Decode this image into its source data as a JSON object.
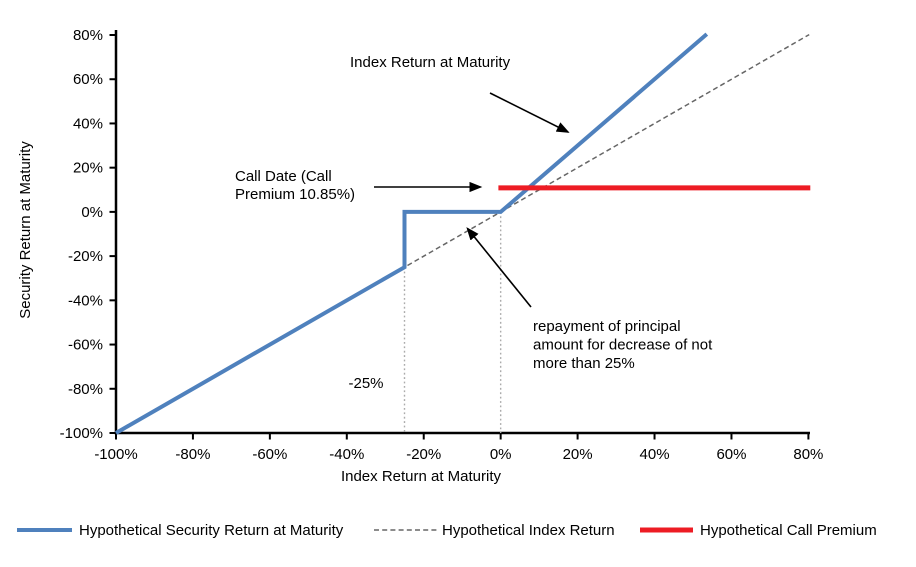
{
  "chart_data": {
    "type": "line",
    "title": "",
    "xlabel": "Index Return at Maturity",
    "ylabel": "Security Return at Maturity",
    "xlim": [
      -100,
      80
    ],
    "ylim": [
      -100,
      80
    ],
    "grid": false,
    "legend_position": "bottom",
    "x_tick_values": [
      -100,
      -80,
      -60,
      -40,
      -20,
      0,
      20,
      40,
      60,
      80
    ],
    "x_tick_labels": [
      "-100%",
      "-80%",
      "-60%",
      "-40%",
      "-20%",
      "0%",
      "20%",
      "40%",
      "60%",
      "80%"
    ],
    "y_tick_values": [
      80,
      60,
      40,
      20,
      0,
      -20,
      -40,
      -60,
      -80,
      -100
    ],
    "y_tick_labels": [
      "80%",
      "60%",
      "40%",
      "20%",
      "0%",
      "-20%",
      "-40%",
      "-60%",
      "-80%",
      "-100%"
    ],
    "series": [
      {
        "name": "Hypothetical Security Return at Maturity",
        "color": "#4F81BD",
        "style": "solid",
        "stroke_width": 4,
        "points": [
          [
            -100,
            -100
          ],
          [
            -25,
            -25
          ],
          [
            -25,
            0
          ],
          [
            0,
            0
          ],
          [
            53.6,
            80.4
          ]
        ]
      },
      {
        "name": "Hypothetical Index Return",
        "color": "#666666",
        "style": "dashed",
        "stroke_width": 1.5,
        "points": [
          [
            -100,
            -100
          ],
          [
            80.2,
            80.2
          ]
        ]
      },
      {
        "name": "Hypothetical Call Premium",
        "color": "#ED1C24",
        "style": "solid",
        "stroke_width": 5,
        "points": [
          [
            -0.6,
            10.85
          ],
          [
            80.5,
            10.85
          ]
        ]
      }
    ],
    "reference_lines": [
      {
        "axis": "x",
        "at": -25,
        "from_y": -25,
        "to_y": -100,
        "style": "dotted",
        "color": "#ABABAB"
      },
      {
        "axis": "x",
        "at": 0,
        "from_y": 0,
        "to_y": -100,
        "style": "dotted",
        "color": "#ABABAB"
      }
    ]
  },
  "annotations": {
    "index_return_label": {
      "text": "Index Return at Maturity"
    },
    "call_date_label": {
      "lines": [
        "Call Date (Call",
        "Premium 10.85%)"
      ]
    },
    "repayment_label": {
      "lines": [
        "repayment of principal",
        "amount for decrease of not",
        "more than 25%"
      ]
    },
    "barrier_value_label": {
      "text": "-25%"
    }
  }
}
